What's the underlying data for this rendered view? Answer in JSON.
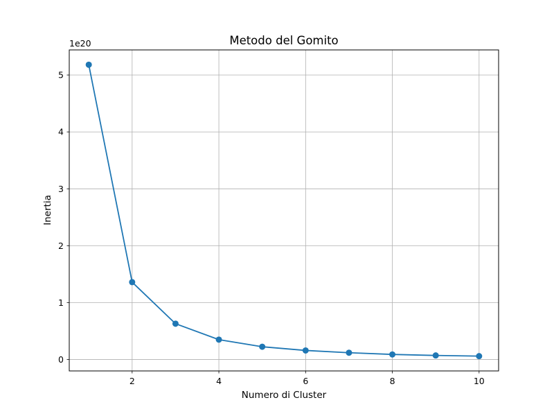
{
  "chart_data": {
    "type": "line",
    "title": "Metodo del Gomito",
    "xlabel": "Numero di Cluster",
    "ylabel": "Inertia",
    "y_offset_label": "1e20",
    "x": [
      1,
      2,
      3,
      4,
      5,
      6,
      7,
      8,
      9,
      10
    ],
    "series": [
      {
        "values": [
          5.18,
          1.36,
          0.63,
          0.35,
          0.225,
          0.16,
          0.12,
          0.09,
          0.072,
          0.06
        ],
        "color": "#1f77b4",
        "marker": "circle"
      }
    ],
    "xlim": [
      0.55,
      10.45
    ],
    "ylim": [
      -0.2,
      5.44
    ],
    "xticks": [
      2,
      4,
      6,
      8,
      10
    ],
    "yticks": [
      0,
      1,
      2,
      3,
      4,
      5
    ],
    "grid": true,
    "grid_color": "#b0b0b0"
  }
}
